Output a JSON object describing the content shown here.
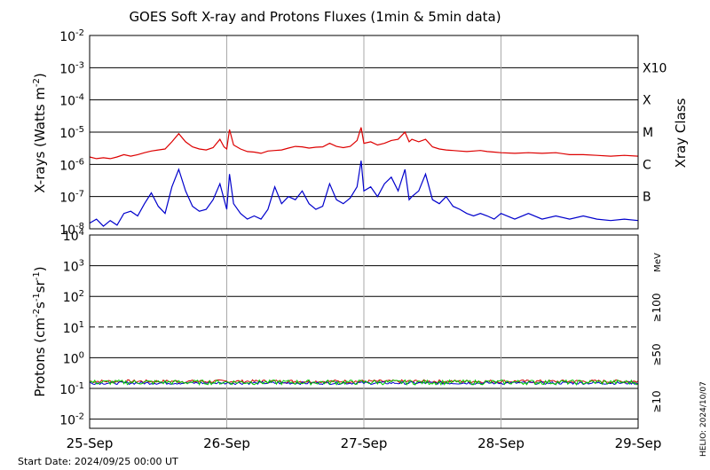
{
  "header": {
    "title": "GOES Soft X-ray and Protons Fluxes  (1min & 5min data)"
  },
  "footer": {
    "start_date": "Start Date: 2024/09/25 00:00 UT",
    "credit": "HELIO: 2024/10/07"
  },
  "colors": {
    "xray_long": "#dd0000",
    "xray_short": "#0000cc",
    "proton_10": "#cc0000",
    "proton_50": "#0000cc",
    "proton_100": "#00cc00",
    "grid": "#000000",
    "day_line": "#aaaaaa"
  },
  "chart_data": [
    {
      "type": "line",
      "panel": "xray",
      "ylabel_main": "X-rays (Watts m",
      "ylabel_exp": "-2",
      "ylabel_close": ")",
      "yscale": "log",
      "ylim": [
        1e-08,
        0.01
      ],
      "y_ticks": [
        {
          "base": "10",
          "exp": "-2",
          "value": 0.01
        },
        {
          "base": "10",
          "exp": "-3",
          "value": 0.001
        },
        {
          "base": "10",
          "exp": "-4",
          "value": 0.0001
        },
        {
          "base": "10",
          "exp": "-5",
          "value": 1e-05
        },
        {
          "base": "10",
          "exp": "-6",
          "value": 1e-06
        },
        {
          "base": "10",
          "exp": "-7",
          "value": 1e-07
        },
        {
          "base": "10",
          "exp": "-8",
          "value": 1e-08
        }
      ],
      "right_axis_title": "Xray Class",
      "class_labels": [
        {
          "label": "X10",
          "value": 0.001
        },
        {
          "label": "X",
          "value": 0.0001
        },
        {
          "label": "M",
          "value": 1e-05
        },
        {
          "label": "C",
          "value": 1e-06
        },
        {
          "label": "B",
          "value": 1e-07
        }
      ],
      "x_labels": [
        "25-Sep",
        "26-Sep",
        "27-Sep",
        "28-Sep",
        "29-Sep"
      ],
      "x_unit": "days",
      "xlim": [
        0,
        4
      ],
      "series": [
        {
          "color_key": "xray_long",
          "points": [
            [
              0.0,
              1.7e-06
            ],
            [
              0.05,
              1.5e-06
            ],
            [
              0.1,
              1.6e-06
            ],
            [
              0.15,
              1.5e-06
            ],
            [
              0.2,
              1.7e-06
            ],
            [
              0.25,
              2e-06
            ],
            [
              0.3,
              1.8e-06
            ],
            [
              0.35,
              2e-06
            ],
            [
              0.4,
              2.3e-06
            ],
            [
              0.45,
              2.6e-06
            ],
            [
              0.5,
              2.8e-06
            ],
            [
              0.55,
              3e-06
            ],
            [
              0.6,
              5e-06
            ],
            [
              0.65,
              9e-06
            ],
            [
              0.7,
              5e-06
            ],
            [
              0.75,
              3.5e-06
            ],
            [
              0.8,
              3e-06
            ],
            [
              0.85,
              2.8e-06
            ],
            [
              0.9,
              3.3e-06
            ],
            [
              0.95,
              6e-06
            ],
            [
              0.98,
              3.5e-06
            ],
            [
              1.0,
              3e-06
            ],
            [
              1.02,
              1.2e-05
            ],
            [
              1.05,
              4e-06
            ],
            [
              1.1,
              3e-06
            ],
            [
              1.15,
              2.5e-06
            ],
            [
              1.2,
              2.4e-06
            ],
            [
              1.25,
              2.2e-06
            ],
            [
              1.3,
              2.6e-06
            ],
            [
              1.35,
              2.7e-06
            ],
            [
              1.4,
              2.8e-06
            ],
            [
              1.45,
              3.2e-06
            ],
            [
              1.5,
              3.6e-06
            ],
            [
              1.55,
              3.5e-06
            ],
            [
              1.6,
              3.2e-06
            ],
            [
              1.65,
              3.4e-06
            ],
            [
              1.7,
              3.5e-06
            ],
            [
              1.75,
              4.5e-06
            ],
            [
              1.8,
              3.6e-06
            ],
            [
              1.85,
              3.3e-06
            ],
            [
              1.9,
              3.6e-06
            ],
            [
              1.95,
              5.5e-06
            ],
            [
              1.98,
              1.4e-05
            ],
            [
              2.0,
              4.5e-06
            ],
            [
              2.05,
              5e-06
            ],
            [
              2.1,
              4e-06
            ],
            [
              2.15,
              4.5e-06
            ],
            [
              2.2,
              5.5e-06
            ],
            [
              2.25,
              6e-06
            ],
            [
              2.3,
              1e-05
            ],
            [
              2.33,
              5e-06
            ],
            [
              2.35,
              6e-06
            ],
            [
              2.4,
              5e-06
            ],
            [
              2.45,
              6e-06
            ],
            [
              2.5,
              3.5e-06
            ],
            [
              2.55,
              3e-06
            ],
            [
              2.6,
              2.8e-06
            ],
            [
              2.65,
              2.7e-06
            ],
            [
              2.7,
              2.6e-06
            ],
            [
              2.75,
              2.5e-06
            ],
            [
              2.8,
              2.6e-06
            ],
            [
              2.85,
              2.7e-06
            ],
            [
              2.9,
              2.5e-06
            ],
            [
              2.95,
              2.4e-06
            ],
            [
              3.0,
              2.3e-06
            ],
            [
              3.1,
              2.2e-06
            ],
            [
              3.2,
              2.3e-06
            ],
            [
              3.3,
              2.2e-06
            ],
            [
              3.4,
              2.3e-06
            ],
            [
              3.5,
              2e-06
            ],
            [
              3.6,
              2e-06
            ],
            [
              3.7,
              1.9e-06
            ],
            [
              3.8,
              1.8e-06
            ],
            [
              3.9,
              1.9e-06
            ],
            [
              4.0,
              1.8e-06
            ]
          ]
        },
        {
          "color_key": "xray_short",
          "points": [
            [
              0.0,
              1.5e-08
            ],
            [
              0.05,
              2e-08
            ],
            [
              0.1,
              1.2e-08
            ],
            [
              0.15,
              1.8e-08
            ],
            [
              0.2,
              1.3e-08
            ],
            [
              0.25,
              3e-08
            ],
            [
              0.3,
              3.5e-08
            ],
            [
              0.35,
              2.5e-08
            ],
            [
              0.4,
              6e-08
            ],
            [
              0.45,
              1.3e-07
            ],
            [
              0.5,
              5e-08
            ],
            [
              0.55,
              3e-08
            ],
            [
              0.6,
              2e-07
            ],
            [
              0.65,
              7e-07
            ],
            [
              0.7,
              1.5e-07
            ],
            [
              0.75,
              5e-08
            ],
            [
              0.8,
              3.5e-08
            ],
            [
              0.85,
              4e-08
            ],
            [
              0.9,
              8e-08
            ],
            [
              0.95,
              2.5e-07
            ],
            [
              1.0,
              4e-08
            ],
            [
              1.02,
              5e-07
            ],
            [
              1.05,
              6e-08
            ],
            [
              1.1,
              3e-08
            ],
            [
              1.15,
              2e-08
            ],
            [
              1.2,
              2.5e-08
            ],
            [
              1.25,
              2e-08
            ],
            [
              1.3,
              4e-08
            ],
            [
              1.35,
              2e-07
            ],
            [
              1.4,
              6e-08
            ],
            [
              1.45,
              1e-07
            ],
            [
              1.5,
              8e-08
            ],
            [
              1.55,
              1.5e-07
            ],
            [
              1.6,
              6e-08
            ],
            [
              1.65,
              4e-08
            ],
            [
              1.7,
              5e-08
            ],
            [
              1.75,
              2.5e-07
            ],
            [
              1.8,
              8e-08
            ],
            [
              1.85,
              6e-08
            ],
            [
              1.9,
              9e-08
            ],
            [
              1.95,
              2e-07
            ],
            [
              1.98,
              1.3e-06
            ],
            [
              2.0,
              1.5e-07
            ],
            [
              2.05,
              2e-07
            ],
            [
              2.1,
              1e-07
            ],
            [
              2.15,
              2.5e-07
            ],
            [
              2.2,
              4e-07
            ],
            [
              2.25,
              1.5e-07
            ],
            [
              2.3,
              7e-07
            ],
            [
              2.33,
              8e-08
            ],
            [
              2.35,
              1e-07
            ],
            [
              2.4,
              1.5e-07
            ],
            [
              2.45,
              5e-07
            ],
            [
              2.5,
              8e-08
            ],
            [
              2.55,
              6e-08
            ],
            [
              2.6,
              1e-07
            ],
            [
              2.65,
              5e-08
            ],
            [
              2.7,
              4e-08
            ],
            [
              2.75,
              3e-08
            ],
            [
              2.8,
              2.5e-08
            ],
            [
              2.85,
              3e-08
            ],
            [
              2.9,
              2.5e-08
            ],
            [
              2.95,
              2e-08
            ],
            [
              3.0,
              3e-08
            ],
            [
              3.1,
              2e-08
            ],
            [
              3.2,
              3e-08
            ],
            [
              3.3,
              2e-08
            ],
            [
              3.4,
              2.5e-08
            ],
            [
              3.5,
              2e-08
            ],
            [
              3.6,
              2.5e-08
            ],
            [
              3.7,
              2e-08
            ],
            [
              3.8,
              1.8e-08
            ],
            [
              3.9,
              2e-08
            ],
            [
              4.0,
              1.8e-08
            ]
          ]
        }
      ]
    },
    {
      "type": "line",
      "panel": "protons",
      "ylabel_main": "Protons (cm",
      "ylabel_exp1": "-2",
      "ylabel_mid1": "s",
      "ylabel_exp2": "-1",
      "ylabel_mid2": "sr",
      "ylabel_exp3": "-1",
      "ylabel_close": ")",
      "yscale": "log",
      "ylim": [
        0.005,
        10000
      ],
      "y_ticks": [
        {
          "base": "10",
          "exp": "4",
          "value": 10000
        },
        {
          "base": "10",
          "exp": "3",
          "value": 1000
        },
        {
          "base": "10",
          "exp": "2",
          "value": 100
        },
        {
          "base": "10",
          "exp": "1",
          "value": 10
        },
        {
          "base": "10",
          "exp": "0",
          "value": 1
        },
        {
          "base": "10",
          "exp": "-1",
          "value": 0.1
        },
        {
          "base": "10",
          "exp": "-2",
          "value": 0.01
        }
      ],
      "threshold": 10,
      "right_labels": [
        {
          "text": "MeV",
          "color_key": "grid"
        },
        {
          "text": "≥100",
          "color_key": "proton_100"
        },
        {
          "text": "≥50",
          "color_key": "proton_50"
        },
        {
          "text": "≥10",
          "color_key": "proton_10"
        }
      ],
      "series": [
        {
          "color_key": "proton_10",
          "level": 0.17,
          "noise": 0.12
        },
        {
          "color_key": "proton_50",
          "level": 0.15,
          "noise": 0.1
        },
        {
          "color_key": "proton_100",
          "level": 0.16,
          "noise": 0.18
        }
      ]
    }
  ]
}
